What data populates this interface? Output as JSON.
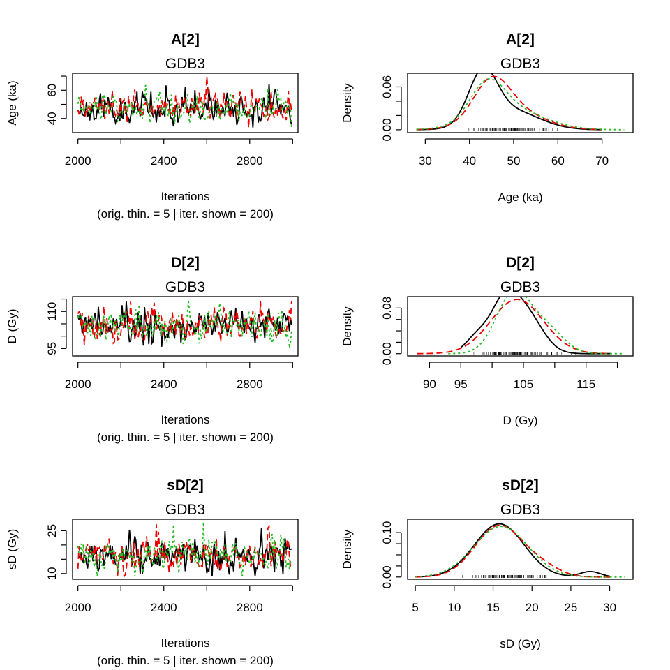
{
  "chart_data": [
    {
      "type": "line",
      "kind": "trace",
      "title": "A[2]",
      "subtitle": "GDB3",
      "xlabel": "Iterations",
      "xlabel2": "(orig. thin. = 5 | iter. shown = 200)",
      "ylabel": "Age (ka)",
      "xlim": [
        1975,
        3025
      ],
      "ylim": [
        30,
        72
      ],
      "xticks": [
        2000,
        2400,
        2800
      ],
      "xminor": [
        2200,
        2600,
        3000
      ],
      "yticks": [
        40,
        60
      ],
      "yminor": [
        50,
        70
      ],
      "mean": 47,
      "sd": 5,
      "min": 33,
      "max": 70,
      "series": [
        {
          "color": "#000000",
          "dash": "",
          "seed": 11
        },
        {
          "color": "#ee0000",
          "dash": "9,5",
          "seed": 27
        },
        {
          "color": "#22bb22",
          "dash": "3,4",
          "seed": 43
        }
      ]
    },
    {
      "type": "line",
      "kind": "density",
      "title": "A[2]",
      "subtitle": "GDB3",
      "xlabel": "Age (ka)",
      "ylabel": "Density",
      "xlim": [
        26,
        77
      ],
      "ylim": [
        -0.004,
        0.079
      ],
      "xticks": [
        30,
        40,
        50,
        60,
        70
      ],
      "yticks": [
        0.0,
        0.06
      ],
      "ytick_labels": [
        "0.00",
        "0.06"
      ],
      "yminor": [
        0.02,
        0.04
      ],
      "series": [
        {
          "color": "#000000",
          "dash": "",
          "mixture": [
            [
              0.55,
              43,
              3.2
            ],
            [
              0.45,
              49,
              6.5
            ]
          ],
          "range": [
            28,
            70
          ]
        },
        {
          "color": "#ee0000",
          "dash": "9,5",
          "mixture": [
            [
              0.5,
              45,
              4.0
            ],
            [
              0.5,
              49,
              7.0
            ]
          ],
          "range": [
            28,
            70
          ]
        },
        {
          "color": "#22bb22",
          "dash": "3,4",
          "mixture": [
            [
              0.45,
              44,
              3.8
            ],
            [
              0.55,
              49,
              7.5
            ]
          ],
          "range": [
            28,
            75
          ]
        }
      ],
      "rug": [
        37,
        62
      ]
    },
    {
      "type": "line",
      "kind": "trace",
      "title": "D[2]",
      "subtitle": "GDB3",
      "xlabel": "Iterations",
      "xlabel2": "(orig. thin. = 5 | iter. shown = 200)",
      "ylabel": "D (Gy)",
      "xlim": [
        1975,
        3025
      ],
      "ylim": [
        92,
        116
      ],
      "xticks": [
        2000,
        2400,
        2800
      ],
      "xminor": [
        2200,
        2600,
        3000
      ],
      "yticks": [
        95,
        110
      ],
      "yminor": [
        100,
        105,
        115
      ],
      "mean": 104,
      "sd": 3.2,
      "min": 94,
      "max": 114,
      "series": [
        {
          "color": "#000000",
          "dash": "",
          "seed": 7
        },
        {
          "color": "#ee0000",
          "dash": "9,5",
          "seed": 19
        },
        {
          "color": "#22bb22",
          "dash": "3,4",
          "seed": 31
        }
      ]
    },
    {
      "type": "line",
      "kind": "density",
      "title": "D[2]",
      "subtitle": "GDB3",
      "xlabel": "D (Gy)",
      "ylabel": "Density",
      "xlim": [
        86.5,
        122.5
      ],
      "ylim": [
        -0.004,
        0.1
      ],
      "xticks": [
        90,
        95,
        105,
        115
      ],
      "xminor": [
        100,
        110,
        120
      ],
      "yticks": [
        0.0,
        0.08
      ],
      "ytick_labels": [
        "0.00",
        "0.08"
      ],
      "yminor": [
        0.02,
        0.04,
        0.06
      ],
      "series": [
        {
          "color": "#000000",
          "dash": "",
          "mixture": [
            [
              0.12,
              97.5,
              1.8
            ],
            [
              0.45,
              101.8,
              2.2
            ],
            [
              0.43,
              105.5,
              2.6
            ]
          ],
          "range": [
            95,
            119
          ]
        },
        {
          "color": "#ee0000",
          "dash": "9,5",
          "mixture": [
            [
              1.0,
              104,
              4.2
            ]
          ],
          "range": [
            88,
            119
          ]
        },
        {
          "color": "#22bb22",
          "dash": "3,4",
          "mixture": [
            [
              0.75,
              103.5,
              2.8
            ],
            [
              0.25,
              109,
              2.6
            ]
          ],
          "range": [
            93,
            121
          ]
        }
      ],
      "rug": [
        95,
        115
      ]
    },
    {
      "type": "line",
      "kind": "trace",
      "title": "sD[2]",
      "subtitle": "GDB3",
      "xlabel": "Iterations",
      "xlabel2": "(orig. thin. = 5 | iter. shown = 200)",
      "ylabel": "sD (Gy)",
      "xlim": [
        1975,
        3025
      ],
      "ylim": [
        8,
        29
      ],
      "xticks": [
        2000,
        2400,
        2800
      ],
      "xminor": [
        2200,
        2600,
        3000
      ],
      "yticks": [
        10,
        25
      ],
      "yminor": [
        15,
        20
      ],
      "mean": 16,
      "sd": 2.8,
      "min": 9,
      "max": 28,
      "series": [
        {
          "color": "#000000",
          "dash": "",
          "seed": 5
        },
        {
          "color": "#ee0000",
          "dash": "9,5",
          "seed": 13
        },
        {
          "color": "#22bb22",
          "dash": "3,4",
          "seed": 29
        }
      ]
    },
    {
      "type": "line",
      "kind": "density",
      "title": "sD[2]",
      "subtitle": "GDB3",
      "xlabel": "sD (Gy)",
      "ylabel": "Density",
      "xlim": [
        4,
        33
      ],
      "ylim": [
        -0.005,
        0.13
      ],
      "xticks": [
        5,
        10,
        15,
        20,
        25,
        30
      ],
      "yticks": [
        0.0,
        0.1
      ],
      "ytick_labels": [
        "0.00",
        "0.10"
      ],
      "yminor": [
        0.025,
        0.05,
        0.075
      ],
      "series": [
        {
          "color": "#000000",
          "dash": "",
          "mixture": [
            [
              0.96,
              15.8,
              3.2
            ],
            [
              0.04,
              27.5,
              1.3
            ]
          ],
          "range": [
            5,
            30
          ]
        },
        {
          "color": "#ee0000",
          "dash": "9,5",
          "mixture": [
            [
              0.9,
              15.8,
              3.1
            ],
            [
              0.1,
              21.5,
              2.2
            ]
          ],
          "range": [
            5,
            30
          ]
        },
        {
          "color": "#22bb22",
          "dash": "3,4",
          "mixture": [
            [
              1.0,
              16,
              3.5
            ]
          ],
          "range": [
            5,
            32
          ]
        }
      ],
      "rug": [
        10,
        24
      ]
    }
  ]
}
